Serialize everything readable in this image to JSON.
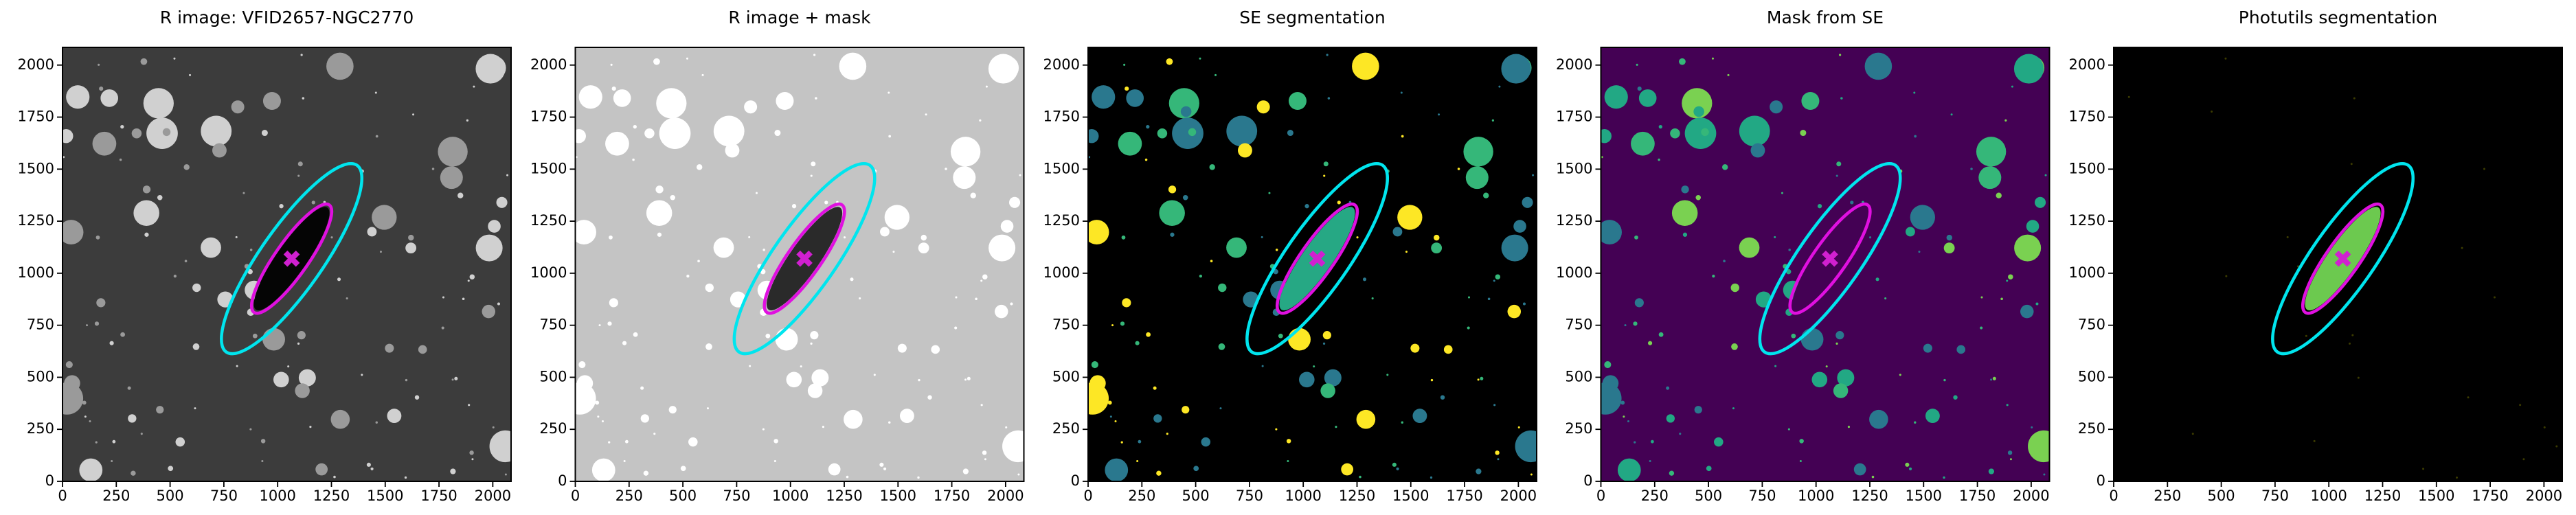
{
  "chart_data": [
    {
      "type": "image",
      "title": "R image: VFID2657-NGC2770",
      "background": "#3c3c3c",
      "galaxy_color": "#050505",
      "source_colors": [
        "#9a9a9a",
        "#d0d0d0"
      ],
      "xlim": [
        0,
        2085
      ],
      "ylim": [
        0,
        2085
      ],
      "xticks": [
        0,
        250,
        500,
        750,
        1000,
        1250,
        1500,
        1750,
        2000
      ],
      "yticks": [
        0,
        250,
        500,
        750,
        1000,
        1250,
        1500,
        1750,
        2000
      ],
      "ellipses": [
        {
          "color": "#00e5ee",
          "center": [
            1065,
            1070
          ],
          "semi_axes": [
            530,
            150
          ],
          "angle": 55
        },
        {
          "color": "#e010e0",
          "center": [
            1065,
            1070
          ],
          "semi_axes": [
            305,
            80
          ],
          "angle": 55
        }
      ],
      "marker": {
        "color": "#d020d0",
        "x": 1065,
        "y": 1070
      }
    },
    {
      "type": "image",
      "title": "R image + mask",
      "background": "#c4c4c4",
      "galaxy_color": "#2a2a2a",
      "source_colors": [
        "#ffffff"
      ],
      "xlim": [
        0,
        2085
      ],
      "ylim": [
        0,
        2085
      ],
      "xticks": [
        0,
        250,
        500,
        750,
        1000,
        1250,
        1500,
        1750,
        2000
      ],
      "yticks": [
        0,
        250,
        500,
        750,
        1000,
        1250,
        1500,
        1750,
        2000
      ],
      "ellipses": [
        {
          "color": "#00e5ee",
          "center": [
            1065,
            1070
          ],
          "semi_axes": [
            530,
            150
          ],
          "angle": 55
        },
        {
          "color": "#e010e0",
          "center": [
            1065,
            1070
          ],
          "semi_axes": [
            305,
            80
          ],
          "angle": 55
        }
      ],
      "marker": {
        "color": "#d020d0",
        "x": 1065,
        "y": 1070
      }
    },
    {
      "type": "image",
      "title": "SE segmentation",
      "background": "#000000",
      "galaxy_color": "#26a884",
      "source_colors": [
        "#fde725",
        "#35b779",
        "#2a788e"
      ],
      "xlim": [
        0,
        2085
      ],
      "ylim": [
        0,
        2085
      ],
      "xticks": [
        0,
        250,
        500,
        750,
        1000,
        1250,
        1500,
        1750,
        2000
      ],
      "yticks": [
        0,
        250,
        500,
        750,
        1000,
        1250,
        1500,
        1750,
        2000
      ],
      "ellipses": [
        {
          "color": "#00e5ee",
          "center": [
            1065,
            1070
          ],
          "semi_axes": [
            530,
            150
          ],
          "angle": 55
        },
        {
          "color": "#e010e0",
          "center": [
            1065,
            1070
          ],
          "semi_axes": [
            305,
            80
          ],
          "angle": 55
        }
      ],
      "marker": {
        "color": "#d020d0",
        "x": 1065,
        "y": 1070
      }
    },
    {
      "type": "image",
      "title": "Mask from SE",
      "background": "#440154",
      "galaxy_color": "#440154",
      "source_colors": [
        "#2a788e",
        "#35b779",
        "#7ad151",
        "#22a884"
      ],
      "xlim": [
        0,
        2085
      ],
      "ylim": [
        0,
        2085
      ],
      "xticks": [
        0,
        250,
        500,
        750,
        1000,
        1250,
        1500,
        1750,
        2000
      ],
      "yticks": [
        0,
        250,
        500,
        750,
        1000,
        1250,
        1500,
        1750,
        2000
      ],
      "ellipses": [
        {
          "color": "#00e5ee",
          "center": [
            1065,
            1070
          ],
          "semi_axes": [
            530,
            150
          ],
          "angle": 55
        },
        {
          "color": "#e010e0",
          "center": [
            1065,
            1070
          ],
          "semi_axes": [
            305,
            80
          ],
          "angle": 55
        }
      ],
      "marker": {
        "color": "#d020d0",
        "x": 1065,
        "y": 1070
      }
    },
    {
      "type": "image",
      "title": "Photutils segmentation",
      "background": "#000000",
      "galaxy_color": "#6cc94f",
      "source_colors": [
        "#3b3b00"
      ],
      "xlim": [
        0,
        2085
      ],
      "ylim": [
        0,
        2085
      ],
      "xticks": [
        0,
        250,
        500,
        750,
        1000,
        1250,
        1500,
        1750,
        2000
      ],
      "yticks": [
        0,
        250,
        500,
        750,
        1000,
        1250,
        1500,
        1750,
        2000
      ],
      "ellipses": [
        {
          "color": "#00e5ee",
          "center": [
            1065,
            1070
          ],
          "semi_axes": [
            530,
            150
          ],
          "angle": 55
        },
        {
          "color": "#e010e0",
          "center": [
            1065,
            1070
          ],
          "semi_axes": [
            305,
            80
          ],
          "angle": 55
        }
      ],
      "marker": {
        "color": "#d020d0",
        "x": 1065,
        "y": 1070
      }
    }
  ]
}
